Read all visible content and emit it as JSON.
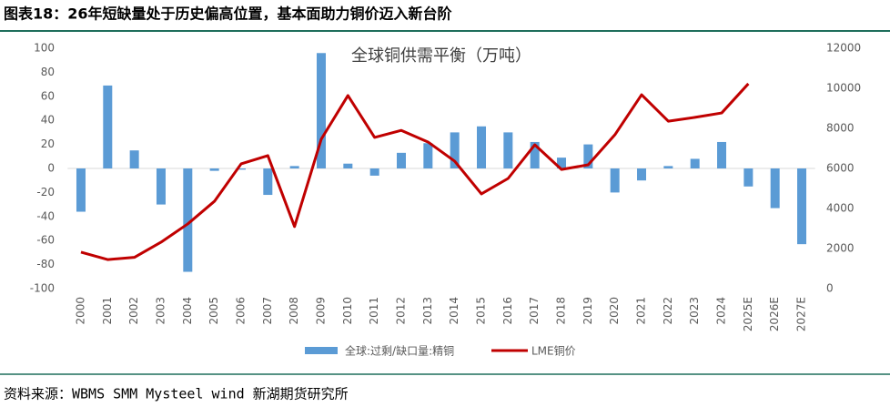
{
  "header": {
    "title": "图表18：26年短缺量处于历史偏高位置，基本面助力铜价迈入新台阶"
  },
  "chart_data": {
    "type": "bar-line",
    "title": "全球铜供需平衡（万吨）",
    "categories": [
      "2000",
      "2001",
      "2002",
      "2003",
      "2004",
      "2005",
      "2006",
      "2007",
      "2008",
      "2009",
      "2010",
      "2011",
      "2012",
      "2013",
      "2014",
      "2015",
      "2016",
      "2017",
      "2018",
      "2019",
      "2020",
      "2021",
      "2022",
      "2023",
      "2024",
      "2025E",
      "2026E",
      "2027E"
    ],
    "series": [
      {
        "name": "全球:过剩/缺口量:精铜",
        "type": "bar",
        "color": "#5b9bd5",
        "axis": "y",
        "values": [
          -36,
          69,
          15,
          -30,
          -86,
          -2,
          -1,
          -22,
          2,
          96,
          4,
          -6,
          13,
          21,
          30,
          35,
          30,
          22,
          9,
          20,
          -20,
          -10,
          2,
          8,
          22,
          -15,
          -33,
          -63
        ]
      },
      {
        "name": "LME铜价",
        "type": "line",
        "color": "#c00000",
        "axis": "y2",
        "values": [
          1820,
          1450,
          1560,
          2320,
          3230,
          4360,
          6230,
          6640,
          3100,
          7460,
          9640,
          7550,
          7900,
          7320,
          6360,
          4730,
          5500,
          7180,
          5950,
          6180,
          7680,
          9680,
          8360,
          8550,
          8770,
          10230,
          null,
          null
        ]
      }
    ],
    "ylim": [
      -100,
      100
    ],
    "yticks": [
      -100,
      -80,
      -60,
      -40,
      -20,
      0,
      20,
      40,
      60,
      80,
      100
    ],
    "y2lim": [
      0,
      12000
    ],
    "y2ticks": [
      0,
      2000,
      4000,
      6000,
      8000,
      10000,
      12000
    ],
    "grid": false,
    "legend": "bottom"
  },
  "footer": {
    "source": "资料来源：WBMS SMM Mysteel wind 新湖期货研究所"
  }
}
